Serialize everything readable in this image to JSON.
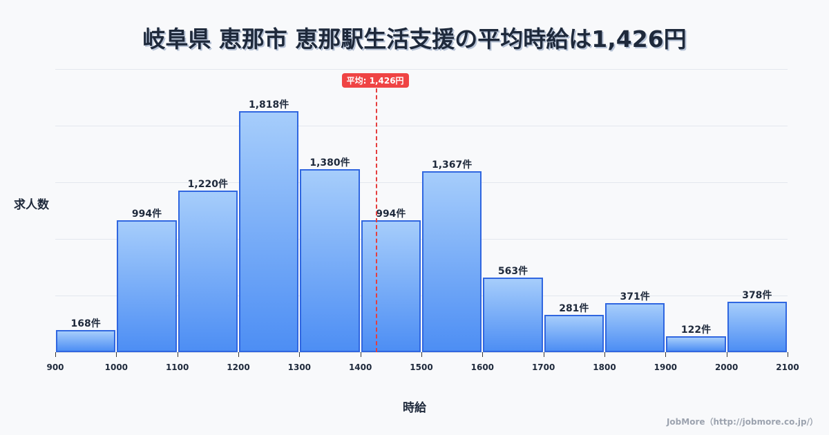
{
  "title": "岐阜県 恵那市 恵那駅生活支援の平均時給は1,426円",
  "average": {
    "label": "平均: 1,426円",
    "value": 1426
  },
  "axis": {
    "ylabel": "求人数",
    "xlabel": "時給"
  },
  "credit": "JobMore（http://jobmore.co.jp/）",
  "colors": {
    "bar_top": "#a6cdfb",
    "bar_bottom": "#4d8ef4",
    "bar_border": "#2f66e0",
    "avg": "#ef4444",
    "text": "#1e293b"
  },
  "chart_data": {
    "type": "bar",
    "title": "岐阜県 恵那市 恵那駅生活支援の平均時給は1,426円",
    "xlabel": "時給",
    "ylabel": "求人数",
    "bin_edges": [
      900,
      1000,
      1100,
      1200,
      1300,
      1400,
      1500,
      1600,
      1700,
      1800,
      1900,
      2000,
      2100
    ],
    "categories": [
      "900-1000",
      "1000-1100",
      "1100-1200",
      "1200-1300",
      "1300-1400",
      "1400-1500",
      "1500-1600",
      "1600-1700",
      "1700-1800",
      "1800-1900",
      "1900-2000",
      "2000-2100"
    ],
    "values": [
      168,
      994,
      1220,
      1818,
      1380,
      994,
      1367,
      563,
      281,
      371,
      122,
      378
    ],
    "labels": [
      "168件",
      "994件",
      "1,220件",
      "1,818件",
      "1,380件",
      "994件",
      "1,367件",
      "563件",
      "281件",
      "371件",
      "122件",
      "378件"
    ],
    "xlim": [
      900,
      2100
    ],
    "grid": true,
    "annotations": [
      {
        "type": "vline",
        "x": 1426,
        "label": "平均: 1,426円"
      }
    ]
  }
}
